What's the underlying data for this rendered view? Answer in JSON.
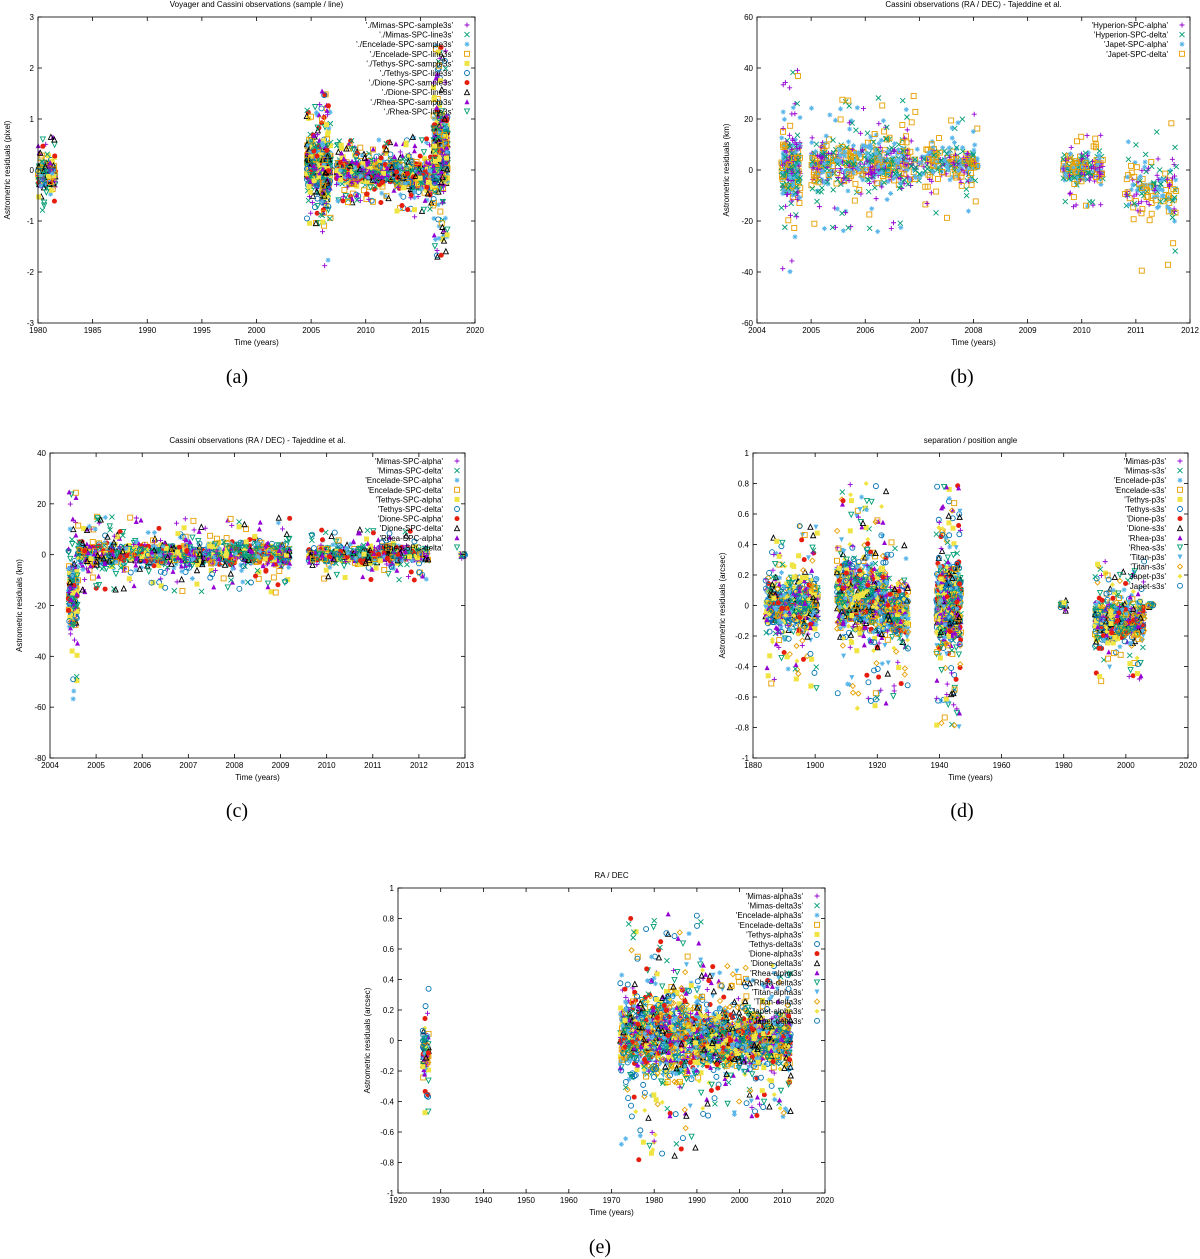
{
  "figure": {
    "captions": [
      "(a)",
      "(b)",
      "(c)",
      "(d)",
      "(e)"
    ]
  },
  "chart_data": [
    {
      "type": "scatter",
      "title": "Voyager and Cassini observations (sample / line)",
      "xlabel": "Time (years)",
      "ylabel": "Astrometric residuals (pixel)",
      "xlim": [
        1980,
        2020
      ],
      "ylim": [
        -3,
        3
      ],
      "xticks": [
        1980,
        1985,
        1990,
        1995,
        2000,
        2005,
        2010,
        2015,
        2020
      ],
      "yticks": [
        -3,
        -2,
        -1,
        0,
        1,
        2,
        3
      ],
      "grid": false,
      "legend_position": "top-right",
      "series": [
        {
          "name": "'./Mimas-SPC-sample3s'",
          "color": "#9400d3",
          "marker": "plus"
        },
        {
          "name": "'./Mimas-SPC-line3s'",
          "color": "#009e73",
          "marker": "cross"
        },
        {
          "name": "'./Encelade-SPC-sample3s'",
          "color": "#56b4e9",
          "marker": "star"
        },
        {
          "name": "'./Encelade-SPC-line3s'",
          "color": "#e69f00",
          "marker": "square-open"
        },
        {
          "name": "'./Tethys-SPC-sample3s'",
          "color": "#f0e442",
          "marker": "square"
        },
        {
          "name": "'./Tethys-SPC-line3s'",
          "color": "#0072b2",
          "marker": "circle-open"
        },
        {
          "name": "'./Dione-SPC-sample3s'",
          "color": "#e51e10",
          "marker": "circle"
        },
        {
          "name": "'./Dione-SPC-line3s'",
          "color": "#000000",
          "marker": "triangle-open"
        },
        {
          "name": "'./Rhea-SPC-sample3s'",
          "color": "#9400d3",
          "marker": "triangle"
        },
        {
          "name": "'./Rhea-SPC-line3s'",
          "color": "#009e73",
          "marker": "triangle-down-open"
        }
      ],
      "clusters": [
        {
          "x": [
            1980.0,
            1981.6
          ],
          "y": [
            -0.8,
            0.65
          ],
          "n": 260
        },
        {
          "x": [
            2004.6,
            2006.8
          ],
          "y": [
            -1.1,
            1.3
          ],
          "n": 900
        },
        {
          "x": [
            2006.0,
            2006.6
          ],
          "y": [
            -2.05,
            1.55
          ],
          "n": 120
        },
        {
          "x": [
            2007.3,
            2012.8
          ],
          "y": [
            -0.65,
            0.6
          ],
          "n": 900
        },
        {
          "x": [
            2012.8,
            2016.2
          ],
          "y": [
            -0.95,
            0.65
          ],
          "n": 500
        },
        {
          "x": [
            2016.2,
            2017.5
          ],
          "y": [
            -1.7,
            2.5
          ],
          "n": 700
        }
      ]
    },
    {
      "type": "scatter",
      "title": "Cassini observations (RA / DEC) - Tajeddine et al.",
      "xlabel": "Time (years)",
      "ylabel": "Astrometric residuals (km)",
      "xlim": [
        2004,
        2012
      ],
      "ylim": [
        -60,
        60
      ],
      "xticks": [
        2004,
        2005,
        2006,
        2007,
        2008,
        2009,
        2010,
        2011,
        2012
      ],
      "yticks": [
        -60,
        -40,
        -20,
        0,
        20,
        40,
        60
      ],
      "grid": false,
      "legend_position": "top-right",
      "series": [
        {
          "name": "'Hyperion-SPC-alpha'",
          "color": "#9400d3",
          "marker": "plus"
        },
        {
          "name": "'Hyperion-SPC-delta'",
          "color": "#009e73",
          "marker": "cross"
        },
        {
          "name": "'Japet-SPC-alpha'",
          "color": "#56b4e9",
          "marker": "star"
        },
        {
          "name": "'Japet-SPC-delta'",
          "color": "#e69f00",
          "marker": "square-open"
        }
      ],
      "clusters": [
        {
          "x": [
            2004.45,
            2004.8
          ],
          "y": [
            -40,
            40
          ],
          "n": 260
        },
        {
          "x": [
            2005.0,
            2006.9
          ],
          "y": [
            -25,
            30
          ],
          "n": 600
        },
        {
          "x": [
            2006.9,
            2008.1
          ],
          "y": [
            -20,
            25
          ],
          "n": 250
        },
        {
          "x": [
            2009.65,
            2010.4
          ],
          "y": [
            -15,
            15
          ],
          "n": 220
        },
        {
          "x": [
            2010.8,
            2011.75
          ],
          "y": [
            -40,
            26
          ],
          "n": 160
        }
      ]
    },
    {
      "type": "scatter",
      "title": "Cassini observations (RA / DEC) - Tajeddine et al.",
      "xlabel": "Time (years)",
      "ylabel": "Astrometric residuals (km)",
      "xlim": [
        2004,
        2013
      ],
      "ylim": [
        -80,
        40
      ],
      "xticks": [
        2004,
        2005,
        2006,
        2007,
        2008,
        2009,
        2010,
        2011,
        2012,
        2013
      ],
      "yticks": [
        -80,
        -60,
        -40,
        -20,
        0,
        20,
        40
      ],
      "grid": false,
      "legend_position": "top-right",
      "series": [
        {
          "name": "'Mimas-SPC-alpha'",
          "color": "#9400d3",
          "marker": "plus"
        },
        {
          "name": "'Mimas-SPC-delta'",
          "color": "#009e73",
          "marker": "cross"
        },
        {
          "name": "'Encelade-SPC-alpha'",
          "color": "#56b4e9",
          "marker": "star"
        },
        {
          "name": "'Encelade-SPC-delta'",
          "color": "#e69f00",
          "marker": "square-open"
        },
        {
          "name": "'Tethys-SPC-alpha'",
          "color": "#f0e442",
          "marker": "square"
        },
        {
          "name": "'Tethys-SPC-delta'",
          "color": "#0072b2",
          "marker": "circle-open"
        },
        {
          "name": "'Dione-SPC-alpha'",
          "color": "#e51e10",
          "marker": "circle"
        },
        {
          "name": "'Dione-SPC-delta'",
          "color": "#000000",
          "marker": "triangle-open"
        },
        {
          "name": "'Rhea-SPC-alpha'",
          "color": "#9400d3",
          "marker": "triangle"
        },
        {
          "name": "'Rhea-SPC-delta'",
          "color": "#009e73",
          "marker": "triangle-down-open"
        }
      ],
      "clusters": [
        {
          "x": [
            2004.4,
            2004.6
          ],
          "y": [
            -60,
            28
          ],
          "n": 220
        },
        {
          "x": [
            2004.6,
            2009.2
          ],
          "y": [
            -15,
            15
          ],
          "n": 1300
        },
        {
          "x": [
            2009.6,
            2012.2
          ],
          "y": [
            -10,
            10
          ],
          "n": 700
        },
        {
          "x": [
            2012.9,
            2013.0
          ],
          "y": [
            -3,
            3
          ],
          "n": 20
        }
      ]
    },
    {
      "type": "scatter",
      "title": "separation / position angle",
      "xlabel": "Time (years)",
      "ylabel": "Astrometric residuals (arcsec)",
      "xlim": [
        1880,
        2020
      ],
      "ylim": [
        -1,
        1
      ],
      "xticks": [
        1880,
        1900,
        1920,
        1940,
        1960,
        1980,
        2000,
        2020
      ],
      "yticks": [
        -1,
        -0.8,
        -0.6,
        -0.4,
        -0.2,
        0,
        0.2,
        0.4,
        0.6,
        0.8,
        1
      ],
      "grid": false,
      "legend_position": "top-right",
      "series": [
        {
          "name": "'Mimas-p3s'",
          "color": "#9400d3",
          "marker": "plus"
        },
        {
          "name": "'Mimas-s3s'",
          "color": "#009e73",
          "marker": "cross"
        },
        {
          "name": "'Encelade-p3s'",
          "color": "#56b4e9",
          "marker": "star"
        },
        {
          "name": "'Encelade-s3s'",
          "color": "#e69f00",
          "marker": "square-open"
        },
        {
          "name": "'Tethys-p3s'",
          "color": "#f0e442",
          "marker": "square"
        },
        {
          "name": "'Tethys-s3s'",
          "color": "#0072b2",
          "marker": "circle-open"
        },
        {
          "name": "'Dione-p3s'",
          "color": "#e51e10",
          "marker": "circle"
        },
        {
          "name": "'Dione-s3s'",
          "color": "#000000",
          "marker": "triangle-open"
        },
        {
          "name": "'Rhea-p3s'",
          "color": "#9400d3",
          "marker": "triangle"
        },
        {
          "name": "'Rhea-s3s'",
          "color": "#009e73",
          "marker": "triangle-down-open"
        },
        {
          "name": "'Titan-p3s'",
          "color": "#56b4e9",
          "marker": "triangle-down"
        },
        {
          "name": "'Titan-s3s'",
          "color": "#e69f00",
          "marker": "diamond-open"
        },
        {
          "name": "'Japet-p3s'",
          "color": "#f0e442",
          "marker": "diamond"
        },
        {
          "name": "'Japet-s3s'",
          "color": "#0072b2",
          "marker": "circle-open"
        }
      ],
      "clusters": [
        {
          "x": [
            1884,
            1901
          ],
          "y": [
            -0.55,
            0.55
          ],
          "n": 700
        },
        {
          "x": [
            1907,
            1923
          ],
          "y": [
            -0.7,
            0.8
          ],
          "n": 900
        },
        {
          "x": [
            1923,
            1930
          ],
          "y": [
            -0.6,
            0.5
          ],
          "n": 300
        },
        {
          "x": [
            1939,
            1947
          ],
          "y": [
            -0.8,
            0.8
          ],
          "n": 800
        },
        {
          "x": [
            1979,
            1981
          ],
          "y": [
            -0.05,
            0.05
          ],
          "n": 20
        },
        {
          "x": [
            1990,
            2006
          ],
          "y": [
            -0.5,
            0.3
          ],
          "n": 700
        },
        {
          "x": [
            2007,
            2009
          ],
          "y": [
            -0.03,
            0.03
          ],
          "n": 20
        }
      ]
    },
    {
      "type": "scatter",
      "title": "RA / DEC",
      "xlabel": "Time (years)",
      "ylabel": "Astrometric residuals (arcsec)",
      "xlim": [
        1920,
        2020
      ],
      "ylim": [
        -1,
        1
      ],
      "xticks": [
        1920,
        1930,
        1940,
        1950,
        1960,
        1970,
        1980,
        1990,
        2000,
        2010,
        2020
      ],
      "yticks": [
        -1,
        -0.8,
        -0.6,
        -0.4,
        -0.2,
        0,
        0.2,
        0.4,
        0.6,
        0.8,
        1
      ],
      "grid": false,
      "legend_position": "top-right",
      "series": [
        {
          "name": "'Mimas-alpha3s'",
          "color": "#9400d3",
          "marker": "plus"
        },
        {
          "name": "'Mimas-delta3s'",
          "color": "#009e73",
          "marker": "cross"
        },
        {
          "name": "'Encelade-alpha3s'",
          "color": "#56b4e9",
          "marker": "star"
        },
        {
          "name": "'Encelade-delta3s'",
          "color": "#e69f00",
          "marker": "square-open"
        },
        {
          "name": "'Tethys-alpha3s'",
          "color": "#f0e442",
          "marker": "square"
        },
        {
          "name": "'Tethys-delta3s'",
          "color": "#0072b2",
          "marker": "circle-open"
        },
        {
          "name": "'Dione-alpha3s'",
          "color": "#e51e10",
          "marker": "circle"
        },
        {
          "name": "'Dione-delta3s'",
          "color": "#000000",
          "marker": "triangle-open"
        },
        {
          "name": "'Rhea-alpha3s'",
          "color": "#9400d3",
          "marker": "triangle"
        },
        {
          "name": "'Rhea-delta3s'",
          "color": "#009e73",
          "marker": "triangle-down-open"
        },
        {
          "name": "'Titan-alpha3s'",
          "color": "#56b4e9",
          "marker": "triangle-down"
        },
        {
          "name": "'Titan-delta3s'",
          "color": "#e69f00",
          "marker": "diamond-open"
        },
        {
          "name": "'Japet-alpha3s'",
          "color": "#f0e442",
          "marker": "diamond"
        },
        {
          "name": "'Japet-delta3s'",
          "color": "#0072b2",
          "marker": "circle-open"
        }
      ],
      "clusters": [
        {
          "x": [
            1925.8,
            1927.2
          ],
          "y": [
            -0.48,
            0.35
          ],
          "n": 120
        },
        {
          "x": [
            1972,
            1991
          ],
          "y": [
            -0.8,
            0.85
          ],
          "n": 1200
        },
        {
          "x": [
            1991,
            2012
          ],
          "y": [
            -0.5,
            0.5
          ],
          "n": 1500
        }
      ]
    }
  ]
}
